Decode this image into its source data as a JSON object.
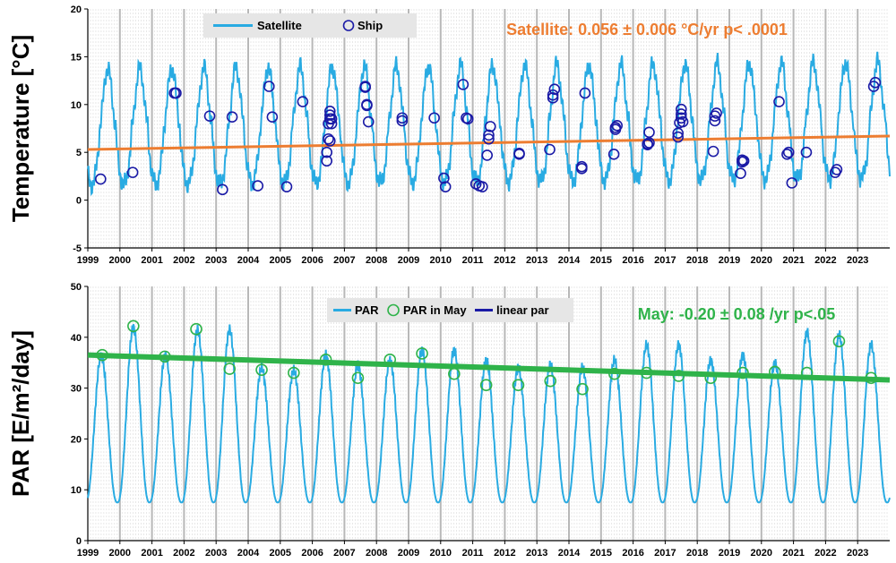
{
  "chart_data": [
    {
      "type": "line",
      "ylabel": "Temperature [°C]",
      "xlim": [
        1999,
        2024
      ],
      "ylim": [
        -5,
        20
      ],
      "yticks": [
        -5,
        0,
        5,
        10,
        15,
        20
      ],
      "xticks": [
        "1999",
        "2000",
        "2001",
        "2002",
        "2003",
        "2004",
        "2005",
        "2006",
        "2007",
        "2008",
        "2009",
        "2010",
        "2011",
        "2012",
        "2013",
        "2014",
        "2015",
        "2016",
        "2017",
        "2018",
        "2019",
        "2020",
        "2021",
        "2022",
        "2023"
      ],
      "legend": {
        "position": "top-center",
        "entries": [
          "Satellite",
          "Ship"
        ]
      },
      "annotation": "Satellite: 0.056 ± 0.006 °C/yr p< .0001",
      "colors": {
        "satellite": "#29abe2",
        "ship": "#1a1aa6",
        "trend": "#ed7d31",
        "annotation": "#ed7d31"
      },
      "satellite_seasonal": {
        "min": 1.6,
        "max": 13.8,
        "peak_phase": 0.62
      },
      "trend": {
        "x": [
          1999,
          2024
        ],
        "y": [
          5.3,
          6.7
        ]
      },
      "ship": {
        "x": [
          1999.4,
          2000.4,
          2001.7,
          2001.75,
          2002.8,
          2003.2,
          2003.5,
          2004.3,
          2004.65,
          2004.75,
          2005.2,
          2005.7,
          2006.45,
          2006.45,
          2006.5,
          2006.5,
          2006.55,
          2006.55,
          2006.55,
          2006.55,
          2006.6,
          2006.6,
          2007.65,
          2007.65,
          2007.7,
          2007.7,
          2007.75,
          2008.8,
          2008.8,
          2009.8,
          2010.1,
          2010.15,
          2010.7,
          2010.8,
          2010.85,
          2011.1,
          2011.2,
          2011.3,
          2011.45,
          2011.5,
          2011.5,
          2011.55,
          2012.45,
          2012.45,
          2013.4,
          2013.5,
          2013.5,
          2013.55,
          2014.4,
          2014.4,
          2014.5,
          2015.4,
          2015.45,
          2015.45,
          2015.5,
          2016.45,
          2016.45,
          2016.5,
          2016.5,
          2017.4,
          2017.4,
          2017.45,
          2017.5,
          2017.5,
          2017.5,
          2017.55,
          2018.5,
          2018.55,
          2018.55,
          2018.6,
          2019.35,
          2019.4,
          2019.4,
          2019.45,
          2020.55,
          2020.8,
          2020.85,
          2020.95,
          2021.4,
          2022.3,
          2022.35,
          2023.5,
          2023.55
        ],
        "y": [
          2.2,
          2.9,
          11.2,
          11.2,
          8.8,
          1.1,
          8.7,
          1.5,
          11.9,
          8.7,
          1.4,
          10.3,
          4.1,
          5.0,
          6.4,
          8.0,
          8.5,
          8.9,
          9.3,
          6.2,
          8.0,
          8.5,
          11.8,
          11.9,
          9.9,
          10.0,
          8.2,
          8.3,
          8.6,
          8.6,
          2.3,
          1.4,
          12.1,
          8.6,
          8.5,
          1.7,
          1.5,
          1.4,
          4.7,
          6.4,
          6.8,
          7.7,
          4.8,
          4.9,
          5.3,
          10.7,
          11.0,
          11.6,
          3.3,
          3.5,
          11.2,
          4.8,
          7.4,
          7.6,
          7.8,
          5.8,
          5.9,
          6.0,
          7.1,
          6.6,
          7.0,
          8.1,
          8.6,
          9.0,
          9.5,
          8.2,
          5.1,
          8.3,
          8.8,
          9.1,
          2.8,
          4.0,
          4.2,
          4.1,
          10.3,
          4.8,
          5.0,
          1.8,
          5.0,
          2.9,
          3.2,
          11.9,
          12.3
        ]
      }
    },
    {
      "type": "line",
      "ylabel": "PAR [E/m²/day]",
      "xlim": [
        1999,
        2024
      ],
      "ylim": [
        0,
        50
      ],
      "yticks": [
        0,
        10,
        20,
        30,
        40,
        50
      ],
      "xticks": [
        "1999",
        "2000",
        "2001",
        "2002",
        "2003",
        "2004",
        "2005",
        "2006",
        "2007",
        "2008",
        "2009",
        "2010",
        "2011",
        "2012",
        "2013",
        "2014",
        "2015",
        "2016",
        "2017",
        "2018",
        "2019",
        "2020",
        "2021",
        "2022",
        "2023"
      ],
      "legend": {
        "position": "top-center",
        "entries": [
          "PAR",
          "PAR in May",
          "linear par"
        ]
      },
      "annotation": "May: -0.20 ± 0.08 /yr  p<.05",
      "colors": {
        "par": "#29abe2",
        "may": "#2fb34a",
        "trend": "#2fb34a",
        "linear_par": "#1a1aa6",
        "annotation": "#2fb34a"
      },
      "par_seasonal": {
        "min": 7.5,
        "peak_phase": 0.42
      },
      "par_annual_max": [
        36.5,
        42.0,
        36.5,
        41.5,
        41.5,
        34.0,
        33.5,
        36.5,
        34.5,
        35.5,
        37.5,
        37.5,
        35.5,
        34.0,
        34.5,
        34.0,
        35.5,
        38.5,
        38.5,
        35.5,
        36.5,
        35.0,
        41.0,
        40.5,
        38.5
      ],
      "trend": {
        "x": [
          1999,
          2024
        ],
        "y": [
          36.5,
          31.6
        ]
      },
      "may_points": {
        "x": [
          1999.45,
          2000.42,
          2001.4,
          2002.38,
          2003.42,
          2004.42,
          2005.42,
          2006.42,
          2007.42,
          2008.42,
          2009.42,
          2010.42,
          2011.42,
          2012.42,
          2013.42,
          2014.42,
          2015.42,
          2016.42,
          2017.42,
          2018.42,
          2019.42,
          2020.42,
          2021.42,
          2022.42,
          2023.42
        ],
        "y": [
          36.5,
          42.2,
          36.2,
          41.6,
          33.8,
          33.6,
          33.0,
          35.6,
          32.0,
          35.6,
          36.8,
          32.8,
          30.6,
          30.6,
          31.4,
          29.8,
          32.8,
          33.0,
          32.4,
          32.0,
          33.0,
          33.2,
          33.0,
          39.2,
          32.0
        ]
      }
    }
  ]
}
